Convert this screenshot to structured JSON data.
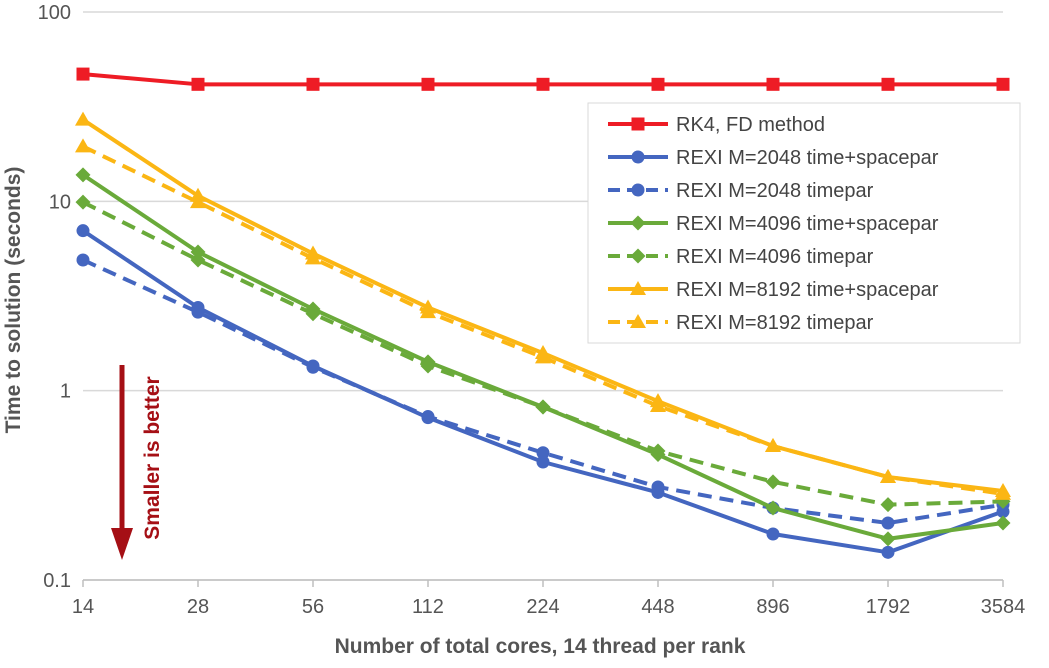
{
  "chart_data": {
    "type": "line",
    "title": "",
    "xlabel": "Number of total cores, 14 thread per rank",
    "ylabel": "Time to solution (seconds)",
    "x_scale": "log2",
    "y_scale": "log10",
    "categories": [
      "14",
      "28",
      "56",
      "112",
      "224",
      "448",
      "896",
      "1792",
      "3584"
    ],
    "x": [
      14,
      28,
      56,
      112,
      224,
      448,
      896,
      1792,
      3584
    ],
    "ylim": [
      0.1,
      100
    ],
    "y_ticks": [
      0.1,
      1,
      10,
      100
    ],
    "y_tick_labels": [
      "0.1",
      "1",
      "10",
      "100"
    ],
    "grid": "horizontal",
    "legend_position": "right",
    "series": [
      {
        "name": "RK4, FD method",
        "color": "#ee1c25",
        "dash": "solid",
        "marker": "square",
        "values": [
          47,
          41.5,
          41.5,
          41.5,
          41.5,
          41.5,
          41.5,
          41.5,
          41.5
        ]
      },
      {
        "name": "REXI M=2048 time+spacepar",
        "color": "#4466c0",
        "dash": "solid",
        "marker": "circle",
        "values": [
          7.0,
          2.75,
          1.35,
          0.72,
          0.42,
          0.29,
          0.175,
          0.14,
          0.23
        ]
      },
      {
        "name": "REXI M=2048 timepar",
        "color": "#4466c0",
        "dash": "dashed",
        "marker": "circle",
        "values": [
          4.9,
          2.6,
          1.33,
          0.73,
          0.47,
          0.31,
          0.24,
          0.2,
          0.25
        ]
      },
      {
        "name": "REXI M=4096 time+spacepar",
        "color": "#6aaa3a",
        "dash": "solid",
        "marker": "diamond",
        "values": [
          13.8,
          5.4,
          2.7,
          1.42,
          0.82,
          0.46,
          0.24,
          0.165,
          0.2
        ]
      },
      {
        "name": "REXI M=4096 timepar",
        "color": "#6aaa3a",
        "dash": "dashed",
        "marker": "diamond",
        "values": [
          9.9,
          4.9,
          2.55,
          1.35,
          0.82,
          0.48,
          0.33,
          0.25,
          0.26
        ]
      },
      {
        "name": "REXI M=8192 time+spacepar",
        "color": "#fbb614",
        "dash": "solid",
        "marker": "triangle",
        "values": [
          27,
          10.7,
          5.3,
          2.75,
          1.58,
          0.88,
          0.51,
          0.35,
          0.295
        ]
      },
      {
        "name": "REXI M=8192 timepar",
        "color": "#fbb614",
        "dash": "dashed",
        "marker": "triangle",
        "values": [
          19.5,
          9.9,
          5.0,
          2.6,
          1.5,
          0.83,
          0.51,
          0.35,
          0.285
        ]
      }
    ],
    "annotation": {
      "text": "Smaller is better",
      "color": "#a50f15"
    }
  }
}
